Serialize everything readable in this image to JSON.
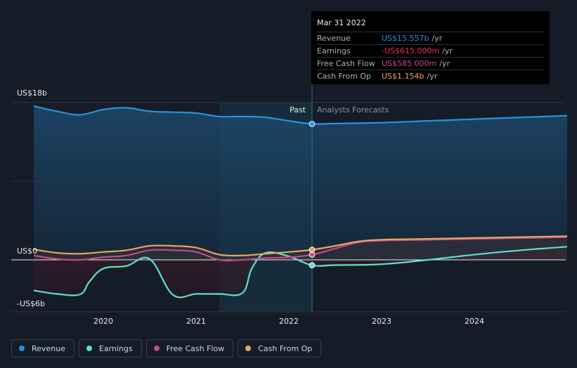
{
  "chart_data": {
    "type": "line",
    "y_axis_labels": {
      "top": "US$18b",
      "zero": "US$0",
      "bottom": "-US$6b"
    },
    "ylim": [
      -6,
      18
    ],
    "xlim": [
      2019.25,
      2025.0
    ],
    "x_ticks": [
      "2020",
      "2021",
      "2022",
      "2023",
      "2024"
    ],
    "x_tick_values": [
      2020,
      2021,
      2022,
      2023,
      2024
    ],
    "past_label": "Past",
    "forecast_label": "Analysts Forecasts",
    "divider_x": 2022.25,
    "highlight_range": [
      2021.25,
      2022.25
    ],
    "gridlines": [
      18,
      9,
      0
    ],
    "series": [
      {
        "name": "Revenue",
        "color": "#2394df",
        "x": [
          2019.25,
          2019.5,
          2019.75,
          2020.0,
          2020.25,
          2020.5,
          2020.75,
          2021.0,
          2021.25,
          2021.5,
          2021.75,
          2022.0,
          2022.25,
          2022.5,
          2023.0,
          2023.5,
          2024.0,
          2024.5,
          2025.0
        ],
        "y": [
          17.6,
          17.0,
          16.6,
          17.2,
          17.4,
          17.0,
          16.9,
          16.8,
          16.4,
          16.4,
          16.3,
          15.9,
          15.557,
          15.6,
          15.7,
          15.9,
          16.1,
          16.3,
          16.5
        ]
      },
      {
        "name": "Earnings",
        "color": "#5ee0d0",
        "x": [
          2019.25,
          2019.5,
          2019.75,
          2019.85,
          2020.0,
          2020.25,
          2020.5,
          2020.75,
          2021.0,
          2021.25,
          2021.5,
          2021.6,
          2021.75,
          2022.0,
          2022.25,
          2022.5,
          2023.0,
          2023.5,
          2024.0,
          2024.5,
          2025.0
        ],
        "y": [
          -3.5,
          -3.9,
          -3.95,
          -2.5,
          -1.0,
          -0.7,
          0.1,
          -4.0,
          -3.9,
          -3.9,
          -3.8,
          -1.0,
          0.8,
          0.4,
          -0.615,
          -0.6,
          -0.5,
          0.0,
          0.6,
          1.1,
          1.5
        ]
      },
      {
        "name": "Free Cash Flow",
        "color": "#c14b87",
        "x": [
          2019.25,
          2019.5,
          2019.75,
          2020.0,
          2020.25,
          2020.5,
          2020.75,
          2021.0,
          2021.25,
          2021.5,
          2021.75,
          2022.0,
          2022.25,
          2022.5,
          2022.75,
          2023.0,
          2023.5,
          2024.0,
          2024.5,
          2025.0
        ],
        "y": [
          0.5,
          0.1,
          0.0,
          0.3,
          0.5,
          1.1,
          1.1,
          0.9,
          0.0,
          0.0,
          0.2,
          0.3,
          0.585,
          1.3,
          2.0,
          2.2,
          2.3,
          2.4,
          2.5,
          2.6
        ]
      },
      {
        "name": "Cash From Op",
        "color": "#e8a660",
        "x": [
          2019.25,
          2019.5,
          2019.75,
          2020.0,
          2020.25,
          2020.5,
          2020.75,
          2021.0,
          2021.25,
          2021.5,
          2021.75,
          2022.0,
          2022.25,
          2022.5,
          2022.75,
          2023.0,
          2023.5,
          2024.0,
          2024.5,
          2025.0
        ],
        "y": [
          1.2,
          0.8,
          0.7,
          0.9,
          1.1,
          1.6,
          1.6,
          1.4,
          0.6,
          0.5,
          0.7,
          0.9,
          1.154,
          1.6,
          2.1,
          2.3,
          2.4,
          2.5,
          2.6,
          2.7
        ]
      }
    ],
    "markers_at_x": 2022.25
  },
  "tooltip": {
    "date": "Mar 31 2022",
    "rows": [
      {
        "label": "Revenue",
        "value": "US$15.557b",
        "unit": "/yr",
        "color": "#2394df"
      },
      {
        "label": "Earnings",
        "value": "-US$615.000m",
        "unit": "/yr",
        "color": "#e6374e"
      },
      {
        "label": "Free Cash Flow",
        "value": "US$585.000m",
        "unit": "/yr",
        "color": "#c14b87"
      },
      {
        "label": "Cash From Op",
        "value": "US$1.154b",
        "unit": "/yr",
        "color": "#e8a660"
      }
    ]
  },
  "legend": [
    {
      "label": "Revenue",
      "color": "#2394df"
    },
    {
      "label": "Earnings",
      "color": "#5ee0d0"
    },
    {
      "label": "Free Cash Flow",
      "color": "#c14b87"
    },
    {
      "label": "Cash From Op",
      "color": "#e8a660"
    }
  ]
}
